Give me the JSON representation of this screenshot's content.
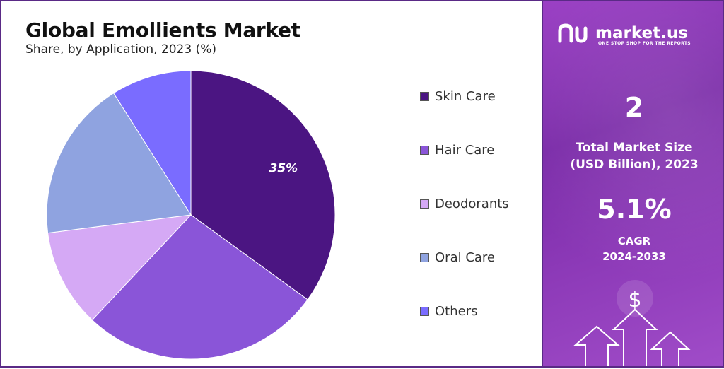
{
  "chart_data": {
    "type": "pie",
    "title": "Global Emollients Market",
    "subtitle": "Share, by  Application, 2023 (%)",
    "slices": [
      {
        "name": "Skin Care",
        "value": 35,
        "color": "#4b1582",
        "label": "35%"
      },
      {
        "name": "Hair Care",
        "value": 27,
        "color": "#8a55d8",
        "label": ""
      },
      {
        "name": "Deodorants",
        "value": 11,
        "color": "#d5a9f5",
        "label": ""
      },
      {
        "name": "Oral Care",
        "value": 18,
        "color": "#8fa3e0",
        "label": ""
      },
      {
        "name": "Others",
        "value": 9,
        "color": "#7a6cff",
        "label": ""
      }
    ],
    "legend_position": "right"
  },
  "panel": {
    "brand": "market.us",
    "tagline": "ONE STOP SHOP FOR THE REPORTS",
    "market_size_value": "2",
    "market_size_label_line1": "Total Market Size",
    "market_size_label_line2": "(USD Billion), 2023",
    "cagr_value": "5.1%",
    "cagr_label_line1": "CAGR",
    "cagr_label_line2": "2024-2033",
    "dollar_symbol": "$",
    "colors": {
      "accent": "#8d3ab8",
      "border": "#5a2a86"
    }
  }
}
